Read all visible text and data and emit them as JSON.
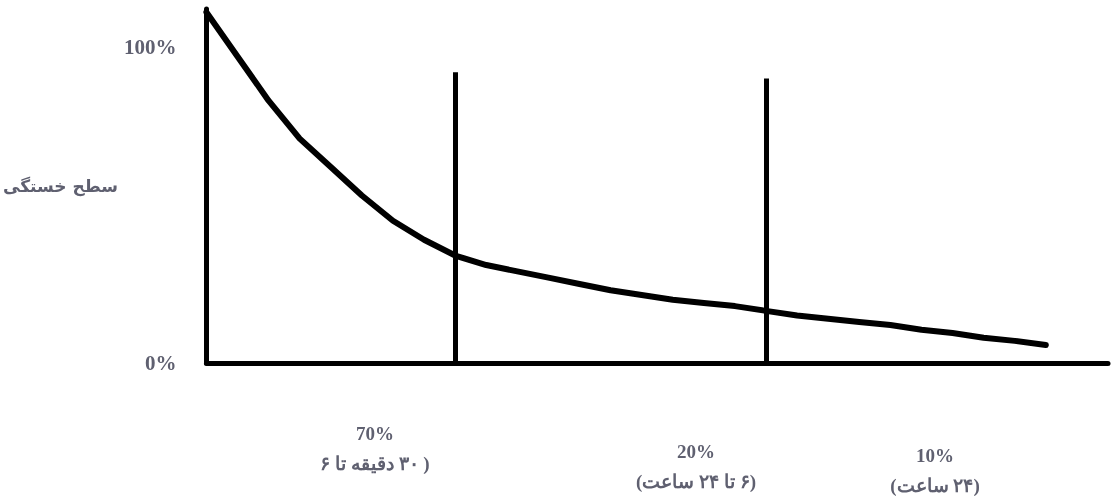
{
  "chart_data": {
    "type": "line",
    "ylabel": "سطح خستگی",
    "categories": [
      null,
      null,
      null,
      null,
      null,
      null,
      null,
      null,
      null,
      null,
      null,
      null,
      null,
      null,
      null,
      null,
      null,
      null,
      null,
      null,
      null,
      null,
      null,
      null,
      null,
      null,
      null,
      null,
      null,
      null
    ],
    "series": [
      {
        "color": "#000000",
        "values": [
          111,
          97,
          83,
          71,
          62,
          53,
          45,
          39,
          34,
          31,
          29,
          27,
          25,
          23,
          21.5,
          20,
          19,
          18,
          16.5,
          15,
          14,
          13,
          12,
          10.5,
          9.5,
          8,
          7,
          5.7,
          null,
          null
        ]
      }
    ],
    "ylim": [
      0,
      112
    ],
    "yticks": [
      {
        "value": 0,
        "label": "0%"
      },
      {
        "value": 100,
        "label": "100%"
      }
    ],
    "annotations": [
      "70%\n( ۳۰ دقیقه تا ۶",
      "20%\n(۶ تا ۲۴ ساعت)",
      "10%\n(۲۴ ساعت)"
    ],
    "grid": false,
    "marker": "none",
    "line_style": "solid"
  }
}
